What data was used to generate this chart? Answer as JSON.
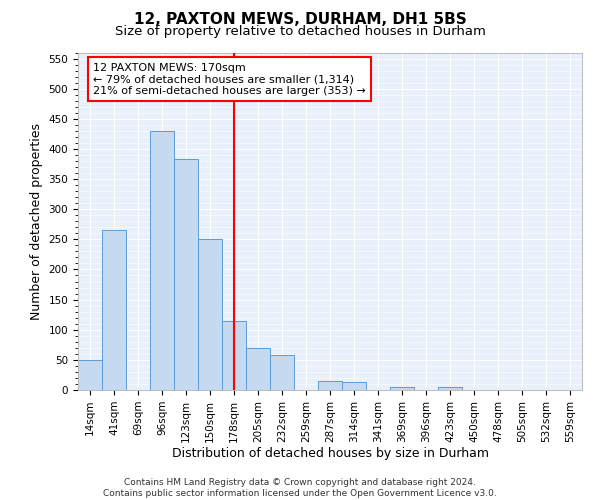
{
  "title_line1": "12, PAXTON MEWS, DURHAM, DH1 5BS",
  "title_line2": "Size of property relative to detached houses in Durham",
  "xlabel": "Distribution of detached houses by size in Durham",
  "ylabel": "Number of detached properties",
  "bar_labels": [
    "14sqm",
    "41sqm",
    "69sqm",
    "96sqm",
    "123sqm",
    "150sqm",
    "178sqm",
    "205sqm",
    "232sqm",
    "259sqm",
    "287sqm",
    "314sqm",
    "341sqm",
    "369sqm",
    "396sqm",
    "423sqm",
    "450sqm",
    "478sqm",
    "505sqm",
    "532sqm",
    "559sqm"
  ],
  "bar_values": [
    50,
    265,
    0,
    430,
    383,
    250,
    115,
    70,
    58,
    0,
    15,
    13,
    0,
    5,
    0,
    5,
    0,
    0,
    0,
    0,
    0
  ],
  "bar_color": "#c5d9f0",
  "bar_edgecolor": "#5b9bd5",
  "property_line_x": 6,
  "annotation_text": "12 PAXTON MEWS: 170sqm\n← 79% of detached houses are smaller (1,314)\n21% of semi-detached houses are larger (353) →",
  "annotation_box_color": "white",
  "annotation_box_edgecolor": "red",
  "vline_color": "red",
  "ylim": [
    0,
    560
  ],
  "yticks": [
    0,
    50,
    100,
    150,
    200,
    250,
    300,
    350,
    400,
    450,
    500,
    550
  ],
  "footer_line1": "Contains HM Land Registry data © Crown copyright and database right 2024.",
  "footer_line2": "Contains public sector information licensed under the Open Government Licence v3.0.",
  "bg_color": "#e8f0fb",
  "grid_color": "white",
  "title_fontsize": 11,
  "subtitle_fontsize": 9.5,
  "axis_label_fontsize": 9,
  "tick_fontsize": 7.5,
  "annotation_fontsize": 8,
  "footer_fontsize": 6.5
}
